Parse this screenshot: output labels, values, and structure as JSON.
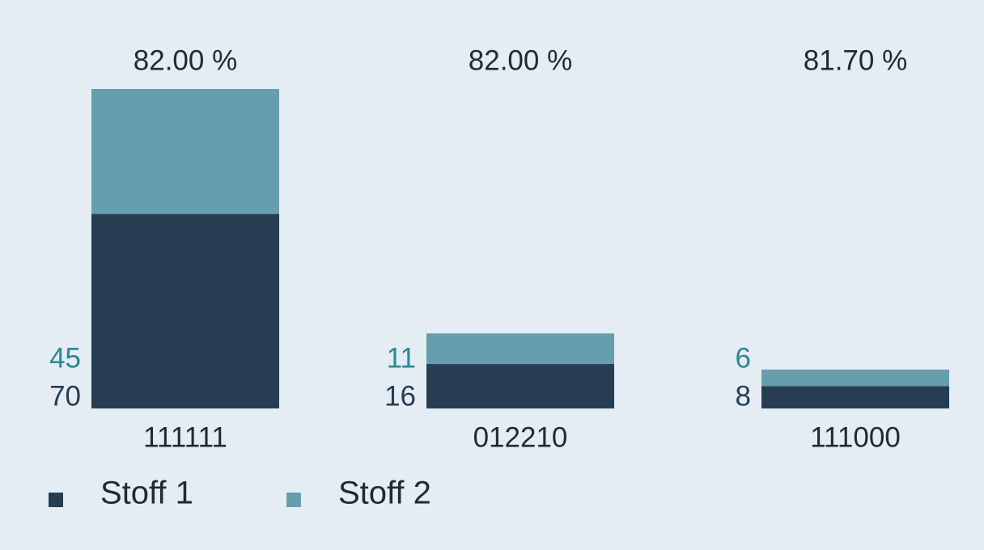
{
  "chart_data": {
    "type": "stacked_bar",
    "categories": [
      "111111",
      "012210",
      "111000"
    ],
    "annotations": [
      "82.00 %",
      "82.00 %",
      "81.70 %"
    ],
    "series": [
      {
        "name": "Stoff 1",
        "color": "#263d52",
        "label_color": "#263d52",
        "values": [
          70,
          16,
          8
        ]
      },
      {
        "name": "Stoff 2",
        "color": "#669eae",
        "label_color": "#2e8696",
        "values": [
          45,
          11,
          6
        ]
      }
    ]
  }
}
